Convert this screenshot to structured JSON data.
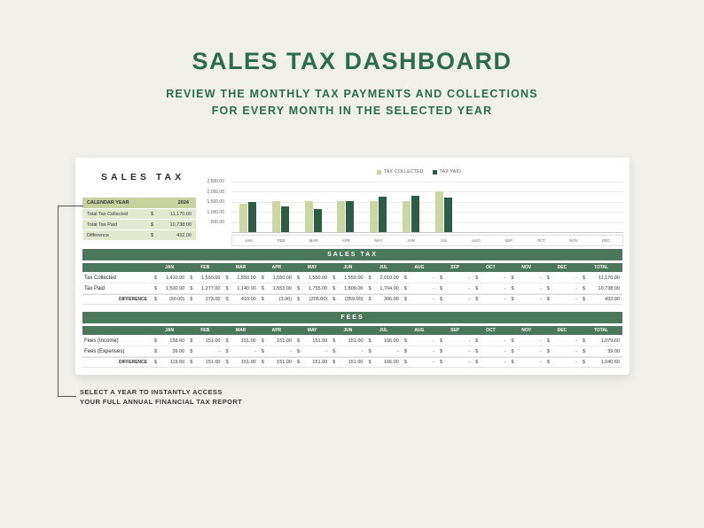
{
  "page": {
    "title": "SALES TAX DASHBOARD",
    "subtitle_line1": "REVIEW THE MONTHLY TAX PAYMENTS AND COLLECTIONS",
    "subtitle_line2": "FOR EVERY MONTH IN THE SELECTED YEAR"
  },
  "sheet": {
    "title": "SALES TAX",
    "summary": {
      "header_label": "CALENDAR YEAR",
      "header_value": "2024",
      "rows": [
        {
          "label": "Total Tax Collected",
          "currency": "$",
          "value": "11,170.00"
        },
        {
          "label": "Total Tax Paid",
          "currency": "$",
          "value": "10,738.00"
        },
        {
          "label": "Difference",
          "currency": "$",
          "value": "432.00"
        }
      ]
    }
  },
  "chart_data": {
    "type": "bar",
    "title": "",
    "categories": [
      "JAN",
      "FEB",
      "MAR",
      "APR",
      "MAY",
      "JUN",
      "JUL",
      "AUG",
      "SEP",
      "OCT",
      "NOV",
      "DEC"
    ],
    "series": [
      {
        "name": "TAX COLLECTED",
        "color": "#ccd6a3",
        "values": [
          1410,
          1550,
          1550,
          1550,
          1550,
          1550,
          2010,
          null,
          null,
          null,
          null,
          null
        ]
      },
      {
        "name": "TAX PAID",
        "color": "#2e5c45",
        "values": [
          1500,
          1277,
          1140,
          1553,
          1755,
          1809,
          1704,
          null,
          null,
          null,
          null,
          null
        ]
      }
    ],
    "ylim": [
      0,
      2500
    ],
    "yticks": [
      {
        "value": 2500,
        "label": "2,500.00"
      },
      {
        "value": 2000,
        "label": "2,000.00"
      },
      {
        "value": 1500,
        "label": "1,500.00"
      },
      {
        "value": 1000,
        "label": "1,000.00"
      },
      {
        "value": 500,
        "label": "500.00"
      }
    ],
    "legend_position": "top",
    "grid": true
  },
  "sales_tax_table": {
    "title": "SALES TAX",
    "currency": "$",
    "columns": [
      "JAN",
      "FEB",
      "MAR",
      "APR",
      "MAY",
      "JUN",
      "JUL",
      "AUG",
      "SEP",
      "OCT",
      "NOV",
      "DEC",
      "TOTAL"
    ],
    "rows": [
      {
        "label": "Tax Collected",
        "values": [
          "1,410.00",
          "1,550.00",
          "1,550.00",
          "1,550.00",
          "1,550.00",
          "1,550.00",
          "2,010.00",
          "-",
          "-",
          "-",
          "-",
          "-",
          "11,170.00"
        ]
      },
      {
        "label": "Tax Paid",
        "values": [
          "1,500.00",
          "1,277.00",
          "1,140.00",
          "1,553.00",
          "1,755.00",
          "1,809.00",
          "1,704.00",
          "-",
          "-",
          "-",
          "-",
          "-",
          "10,738.00"
        ]
      }
    ],
    "difference_row": {
      "label": "DIFFERENCE",
      "values": [
        "(90.00)",
        "273.00",
        "410.00",
        "(3.00)",
        "(205.00)",
        "(259.00)",
        "306.00",
        "-",
        "-",
        "-",
        "-",
        "-",
        "432.00"
      ]
    }
  },
  "fees_table": {
    "title": "FEES",
    "currency": "$",
    "columns": [
      "JAN",
      "FEB",
      "MAR",
      "APR",
      "MAY",
      "JUN",
      "JUL",
      "AUG",
      "SEP",
      "OCT",
      "NOV",
      "DEC",
      "TOTAL"
    ],
    "rows": [
      {
        "label": "Fees (Income)",
        "values": [
          "158.60",
          "151.00",
          "151.00",
          "151.00",
          "151.00",
          "151.00",
          "166.00",
          "-",
          "-",
          "-",
          "-",
          "-",
          "1,079.60"
        ]
      },
      {
        "label": "Fees (Expenses)",
        "values": [
          "39.00",
          "-",
          "-",
          "-",
          "-",
          "-",
          "-",
          "-",
          "-",
          "-",
          "-",
          "-",
          "39.00"
        ]
      }
    ],
    "difference_row": {
      "label": "DIFFERENCE",
      "values": [
        "119.60",
        "151.00",
        "151.00",
        "151.00",
        "151.00",
        "151.00",
        "166.00",
        "-",
        "-",
        "-",
        "-",
        "-",
        "1,040.60"
      ]
    }
  },
  "annotation": {
    "line1": "SELECT A YEAR TO INSTANTLY ACCESS",
    "line2": "YOUR FULL ANNUAL FINANCIAL TAX REPORT"
  },
  "colors": {
    "background": "#f0efe9",
    "heading_green": "#2d6a4f",
    "table_header_green": "#4b775c",
    "bar_dark_green": "#2e5c45",
    "bar_light_olive": "#ccd6a3",
    "summary_header_bg": "#c8d29e",
    "summary_row_bg": "#e3e8d0"
  }
}
